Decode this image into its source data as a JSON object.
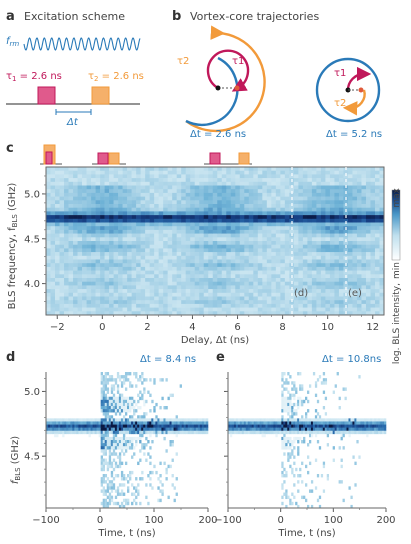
{
  "panels": {
    "a": {
      "letter": "a",
      "title": "Excitation scheme",
      "f_label": "f",
      "f_sub": "rm",
      "tau1": "τ",
      "tau1_sub": "1",
      "tau1_value": " = 2.6 ns",
      "tau2": "τ",
      "tau2_sub": "2",
      "tau2_value": " = 2.6 ns",
      "dt_label": "Δt"
    },
    "b": {
      "letter": "b",
      "title": "Vortex-core trajectories",
      "left_tau1": "τ1",
      "left_tau2": "τ2",
      "right_tau1": "τ1",
      "right_tau2": "τ2",
      "left_dt": "Δt = 2.6 ns",
      "right_dt": "Δt = 5.2 ns"
    },
    "c": {
      "letter": "c",
      "ylabel": "BLS frequency, f",
      "ylabel_sub": "BLS",
      "ylabel_unit": " (GHz)",
      "xlabel": "Delay, Δt (ns)",
      "yticks": [
        "5.0",
        "4.5",
        "4.0"
      ],
      "xticks": [
        "−2",
        "0",
        "2",
        "4",
        "6",
        "8",
        "10",
        "12"
      ],
      "marker_d": "(d)",
      "marker_e": "(e)",
      "colorbar_label": "log. BLS intensity,",
      "colorbar_min": "min",
      "colorbar_max": "max"
    },
    "d": {
      "letter": "d",
      "annotation": "Δt = 8.4 ns",
      "ylabel": "f",
      "ylabel_sub": "BLS",
      "ylabel_unit": " (GHz)",
      "yticks": [
        "5.0",
        "4.5"
      ],
      "xticks": [
        "−100",
        "0",
        "100",
        "200"
      ],
      "xlabel": "Time, t (ns)"
    },
    "e": {
      "letter": "e",
      "annotation": "Δt = 10.8ns",
      "xticks": [
        "−100",
        "0",
        "100",
        "200"
      ],
      "xlabel": "Time, t (ns)"
    }
  },
  "colors": {
    "blue": "#2a7ab8",
    "orange": "#f29a3a",
    "crimson": "#c0185a",
    "pink_fill": "#e05a8c",
    "orange_fill": "#f5b06a",
    "gray": "#777777",
    "dark": "#333333"
  },
  "chart_data": [
    {
      "type": "heatmap",
      "panel": "c",
      "xlabel": "Delay, Δt (ns)",
      "ylabel": "BLS frequency, fBLS (GHz)",
      "xlim": [
        -2.5,
        12.5
      ],
      "ylim": [
        3.65,
        5.3
      ],
      "main_band_frequency": 4.73,
      "dashed_lines": [
        8.4,
        10.8
      ],
      "colorbar": "log. BLS intensity, min to max"
    },
    {
      "type": "heatmap",
      "panel": "d",
      "xlabel": "Time, t (ns)",
      "ylabel": "fBLS (GHz)",
      "xlim": [
        -100,
        200
      ],
      "main_band_frequency": 4.73
    },
    {
      "type": "heatmap",
      "panel": "e",
      "xlabel": "Time, t (ns)",
      "xlim": [
        -100,
        200
      ],
      "main_band_frequency": 4.73
    }
  ]
}
